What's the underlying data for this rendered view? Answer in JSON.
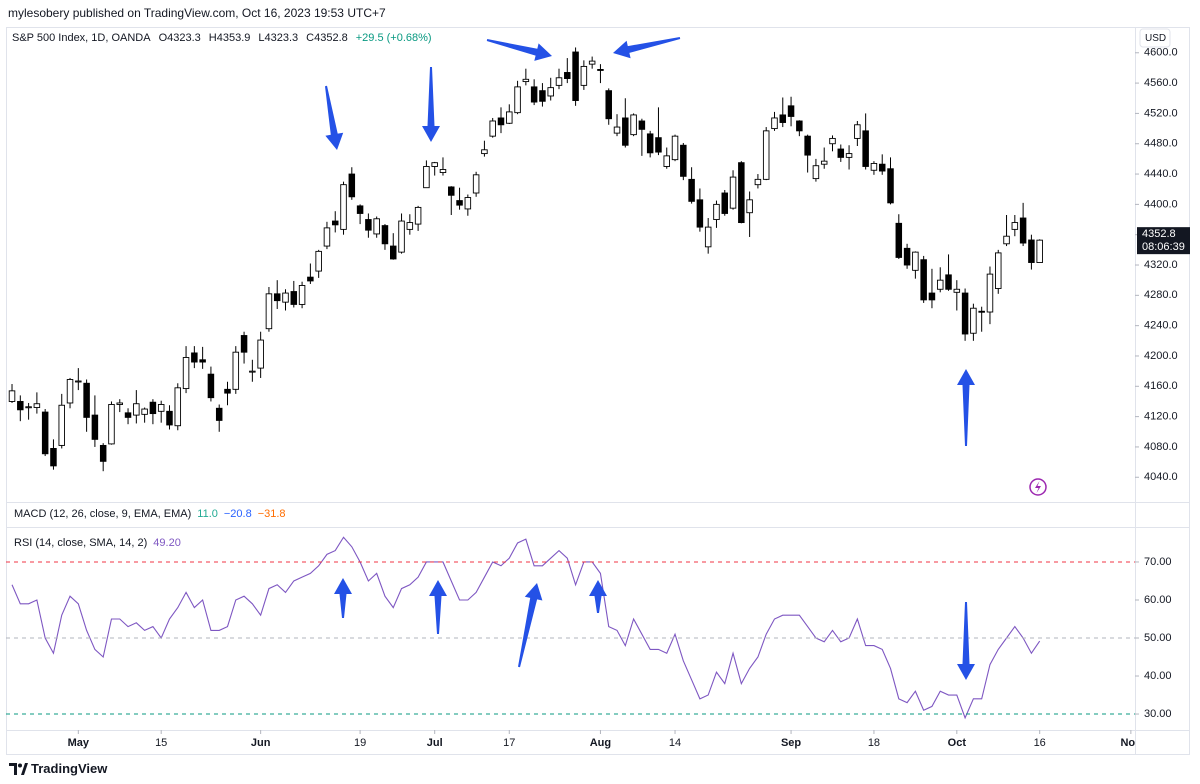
{
  "header": "mylesobery published on TradingView.com, Oct 16, 2023 19:53 UTC+7",
  "footer": "TradingView",
  "chart_data": [
    {
      "type": "candlestick",
      "title": "S&P 500 Index, 1D, OANDA",
      "ohlc_legend": [
        "O4323.3",
        "H4353.9",
        "L4323.3",
        "C4352.8"
      ],
      "change": "+29.5 (+0.68%)",
      "currency": "USD",
      "last_price_label": "4352.8",
      "countdown": "08:06:39",
      "up_color": "#ffffff",
      "down_color": "#000000",
      "open": [
        4140,
        4140,
        4132,
        4132,
        4126,
        4078,
        4082,
        4138,
        4166,
        4164,
        4122,
        4082,
        4084,
        4136,
        4125,
        4122,
        4123,
        4139,
        4127,
        4127,
        4108,
        4157,
        4204,
        4195,
        4176,
        4131,
        4156,
        4156,
        4227,
        4180,
        4184,
        4236,
        4282,
        4271,
        4285,
        4268,
        4304,
        4312,
        4345,
        4378,
        4367,
        4440,
        4398,
        4380,
        4361,
        4372,
        4345,
        4337,
        4367,
        4374,
        4422,
        4450,
        4442,
        4423,
        4405,
        4394,
        4415,
        4467,
        4490,
        4514,
        4507,
        4521,
        4562,
        4555,
        4550,
        4543,
        4557,
        4574,
        4601,
        4557,
        4585,
        4578,
        4550,
        4494,
        4514,
        4492,
        4510,
        4493,
        4488,
        4450,
        4459,
        4478,
        4433,
        4406,
        4344,
        4380,
        4415,
        4395,
        4455,
        4389,
        4426,
        4433,
        4500,
        4518,
        4530,
        4510,
        4490,
        4434,
        4453,
        4480,
        4473,
        4462,
        4487,
        4497,
        4445,
        4453,
        4447,
        4375,
        4342,
        4313,
        4327,
        4283,
        4288,
        4307,
        4284,
        4283,
        4230,
        4259,
        4258,
        4289,
        4348,
        4367,
        4382,
        4353,
        4323.3
      ],
      "high": [
        4163,
        4148,
        4138,
        4152,
        4130,
        4090,
        4150,
        4171,
        4184,
        4169,
        4148,
        4085,
        4140,
        4143,
        4131,
        4155,
        4132,
        4143,
        4141,
        4135,
        4164,
        4213,
        4213,
        4212,
        4186,
        4136,
        4166,
        4213,
        4232,
        4195,
        4232,
        4291,
        4300,
        4288,
        4299,
        4298,
        4322,
        4340,
        4377,
        4391,
        4430,
        4449,
        4400,
        4388,
        4384,
        4374,
        4362,
        4388,
        4387,
        4398,
        4458,
        4456,
        4462,
        4424,
        4422,
        4413,
        4443,
        4484,
        4514,
        4528,
        4532,
        4563,
        4579,
        4565,
        4560,
        4567,
        4579,
        4593,
        4607,
        4590,
        4595,
        4585,
        4553,
        4519,
        4540,
        4520,
        4513,
        4497,
        4528,
        4475,
        4492,
        4481,
        4449,
        4421,
        4382,
        4405,
        4419,
        4445,
        4457,
        4417,
        4440,
        4502,
        4522,
        4541,
        4542,
        4511,
        4492,
        4460,
        4475,
        4491,
        4479,
        4478,
        4510,
        4520,
        4457,
        4466,
        4462,
        4387,
        4348,
        4338,
        4332,
        4315,
        4317,
        4334,
        4300,
        4289,
        4269,
        4265,
        4318,
        4340,
        4386,
        4386,
        4402,
        4360,
        4353.9
      ],
      "low": [
        4138,
        4114,
        4116,
        4124,
        4068,
        4050,
        4078,
        4131,
        4155,
        4100,
        4080,
        4048,
        4083,
        4126,
        4110,
        4111,
        4112,
        4110,
        4112,
        4103,
        4102,
        4151,
        4184,
        4183,
        4140,
        4100,
        4135,
        4150,
        4190,
        4166,
        4171,
        4232,
        4262,
        4260,
        4264,
        4263,
        4295,
        4303,
        4341,
        4363,
        4360,
        4406,
        4374,
        4356,
        4356,
        4340,
        4327,
        4335,
        4360,
        4365,
        4422,
        4438,
        4438,
        4386,
        4393,
        4385,
        4410,
        4463,
        4488,
        4494,
        4506,
        4519,
        4557,
        4531,
        4529,
        4537,
        4552,
        4560,
        4530,
        4551,
        4579,
        4560,
        4505,
        4490,
        4475,
        4490,
        4464,
        4462,
        4465,
        4447,
        4457,
        4432,
        4401,
        4364,
        4335,
        4369,
        4385,
        4393,
        4375,
        4357,
        4421,
        4432,
        4497,
        4502,
        4503,
        4490,
        4442,
        4430,
        4447,
        4470,
        4456,
        4446,
        4477,
        4446,
        4439,
        4439,
        4400,
        4328,
        4315,
        4302,
        4270,
        4263,
        4284,
        4286,
        4260,
        4220,
        4220,
        4232,
        4242,
        4282,
        4345,
        4358,
        4345,
        4314,
        4323.3
      ],
      "close": [
        4154,
        4129,
        4133,
        4137,
        4071,
        4055,
        4135,
        4169,
        4167,
        4119,
        4090,
        4061,
        4136,
        4138,
        4119,
        4137,
        4130,
        4124,
        4136,
        4109,
        4158,
        4198,
        4192,
        4192,
        4145,
        4115,
        4151,
        4205,
        4205,
        4180,
        4221,
        4282,
        4273,
        4283,
        4268,
        4293,
        4299,
        4338,
        4369,
        4373,
        4426,
        4410,
        4388,
        4366,
        4381,
        4348,
        4328,
        4378,
        4376,
        4396,
        4450,
        4455,
        4446,
        4412,
        4399,
        4409,
        4439,
        4472,
        4510,
        4505,
        4522,
        4555,
        4565,
        4535,
        4536,
        4554,
        4567,
        4566,
        4537,
        4582,
        4589,
        4577,
        4513,
        4502,
        4478,
        4518,
        4499,
        4468,
        4469,
        4464,
        4490,
        4437,
        4404,
        4370,
        4370,
        4400,
        4388,
        4436,
        4376,
        4406,
        4433,
        4497,
        4514,
        4508,
        4516,
        4497,
        4465,
        4451,
        4457,
        4487,
        4462,
        4467,
        4505,
        4450,
        4454,
        4444,
        4402,
        4330,
        4320,
        4337,
        4274,
        4274,
        4300,
        4288,
        4288,
        4229,
        4263,
        4258,
        4308,
        4336,
        4358,
        4376,
        4349,
        4323.3,
        4352.8
      ],
      "ylim": [
        4010,
        4634
      ],
      "yticks": [
        {
          "value": 4040,
          "label": "4040.0"
        },
        {
          "value": 4080,
          "label": "4080.0"
        },
        {
          "value": 4120,
          "label": "4120.0"
        },
        {
          "value": 4160,
          "label": "4160.0"
        },
        {
          "value": 4200,
          "label": "4200.0"
        },
        {
          "value": 4240,
          "label": "4240.0"
        },
        {
          "value": 4280,
          "label": "4280.0"
        },
        {
          "value": 4320,
          "label": "4320.0"
        },
        {
          "value": 4360,
          "label": "4360.0"
        },
        {
          "value": 4400,
          "label": "4400.0"
        },
        {
          "value": 4440,
          "label": "4440.0"
        },
        {
          "value": 4480,
          "label": "4480.0"
        },
        {
          "value": 4520,
          "label": "4520.0"
        },
        {
          "value": 4560,
          "label": "4560.0"
        },
        {
          "value": 4600,
          "label": "4600.0"
        }
      ],
      "xlim": [
        -1.45,
        135.5
      ],
      "xticks": [
        {
          "value": 8,
          "label": "May"
        },
        {
          "value": 18,
          "label": "15"
        },
        {
          "value": 30,
          "label": "Jun"
        },
        {
          "value": 42,
          "label": "19"
        },
        {
          "value": 51,
          "label": "Jul"
        },
        {
          "value": 60,
          "label": "17"
        },
        {
          "value": 71,
          "label": "Aug"
        },
        {
          "value": 80,
          "label": "14"
        },
        {
          "value": 94,
          "label": "Sep"
        },
        {
          "value": 104,
          "label": "18"
        },
        {
          "value": 114,
          "label": "Oct"
        },
        {
          "value": 124,
          "label": "16"
        },
        {
          "value": 135,
          "label": "Nov"
        }
      ]
    },
    {
      "type": "indicator",
      "title": "MACD (12, 26, close, 9, EMA, EMA)",
      "legend_values": [
        {
          "label": "11.0",
          "color": "#22ab94"
        },
        {
          "label": "−20.8",
          "color": "#2962ff"
        },
        {
          "label": "−31.8",
          "color": "#ff6d00"
        }
      ]
    },
    {
      "type": "line",
      "series": [
        {
          "name": "RSI (14, close, SMA, 14, 2)",
          "legend_value": "49.20",
          "color": "#7e57c2",
          "values": [
            64,
            59,
            59,
            60,
            50,
            46,
            56,
            61,
            59,
            52,
            47,
            45,
            55,
            55,
            53,
            54,
            52,
            53,
            50,
            55,
            58,
            62,
            58,
            60,
            52,
            52,
            53,
            60,
            61,
            59,
            56,
            63,
            64,
            62,
            65,
            66,
            67,
            69,
            72,
            73,
            76.5,
            74,
            70,
            65,
            67,
            61,
            58,
            63,
            64,
            66,
            70,
            70,
            70,
            65,
            60,
            60,
            62,
            66,
            70,
            69,
            71,
            75,
            76,
            69,
            69,
            71,
            73,
            71,
            64,
            70,
            70,
            67,
            53,
            52,
            48,
            55,
            51,
            47,
            47,
            46,
            51,
            44,
            39,
            34,
            35,
            41,
            38,
            46,
            38,
            42,
            45,
            51,
            55,
            56,
            56,
            56,
            53,
            50,
            49,
            52,
            49,
            50,
            55,
            48,
            48,
            47,
            42,
            34,
            33,
            36,
            31,
            32,
            36,
            35,
            35,
            29,
            34,
            34,
            43,
            47,
            50,
            53,
            50,
            46,
            49.2
          ]
        }
      ],
      "bands": [
        {
          "value": 70,
          "color": "#f23645"
        },
        {
          "value": 50,
          "color": "#b2b5be"
        },
        {
          "value": 30,
          "color": "#089981"
        }
      ],
      "ylim": [
        25.8,
        79.2
      ],
      "yticks": [
        {
          "value": 30,
          "label": "30.00"
        },
        {
          "value": 40,
          "label": "40.00"
        },
        {
          "value": 50,
          "label": "50.00"
        },
        {
          "value": 60,
          "label": "60.00"
        },
        {
          "value": 70,
          "label": "70.00"
        }
      ]
    }
  ]
}
